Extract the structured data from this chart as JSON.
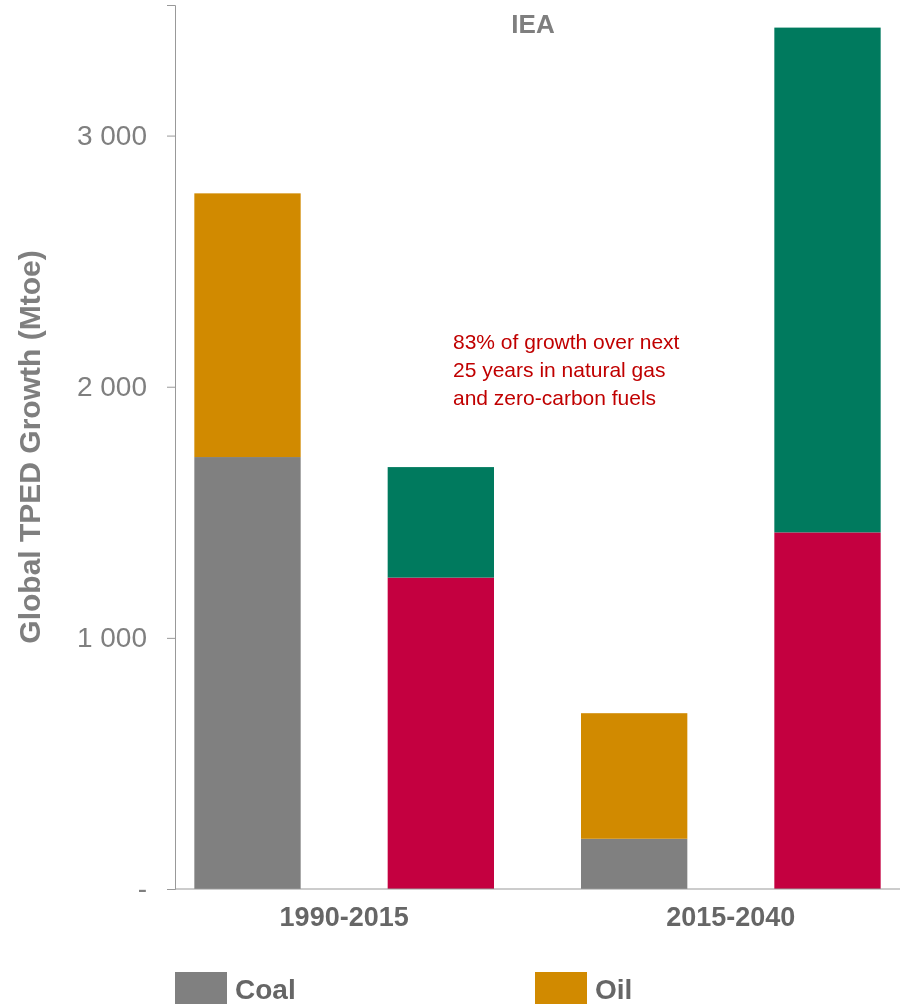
{
  "chart_data": {
    "type": "bar",
    "title": "IEA",
    "ylabel": "Global TPED Growth (Mtoe)",
    "stacked": true,
    "categories": [
      "1990-2015",
      null,
      "2015-2040",
      null
    ],
    "series": [
      {
        "name": "Coal",
        "color": "#808080",
        "values": [
          1720,
          null,
          200,
          null
        ]
      },
      {
        "name": "Oil",
        "color": "#d18a00",
        "values": [
          1050,
          null,
          500,
          null
        ]
      },
      {
        "color": "#c40040",
        "values": [
          null,
          1240,
          null,
          1420
        ]
      },
      {
        "color": "#007a5e",
        "values": [
          null,
          440,
          null,
          2010
        ]
      }
    ],
    "ylim": [
      0,
      3520
    ],
    "yticks": [
      {
        "value": 0,
        "label": "-"
      },
      {
        "value": 1000,
        "label": "1 000"
      },
      {
        "value": 2000,
        "label": "2 000"
      },
      {
        "value": 3000,
        "label": "3 000"
      }
    ],
    "grid": false,
    "legend": "bottom",
    "annotations": [
      "83% of growth over next\n25 years in natural gas\nand zero-carbon fuels"
    ]
  }
}
